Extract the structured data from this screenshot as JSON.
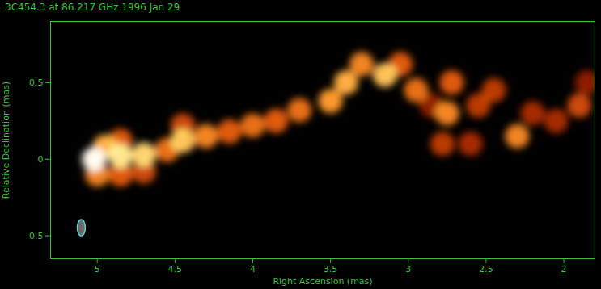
{
  "chart_data": {
    "type": "heatmap",
    "title": "3C454.3 at 86.217 GHz 1996 Jan 29",
    "x_label": "Right Ascension (mas)",
    "y_label": "Relative Declination (mas)",
    "xlim": [
      5.3,
      1.8
    ],
    "ylim": [
      -0.65,
      0.9
    ],
    "xticks": [
      5,
      4.5,
      4,
      3.5,
      3,
      2.5,
      2
    ],
    "yticks": [
      0.5,
      0,
      -0.5
    ],
    "grid": false,
    "components": {
      "x": [
        5.02,
        5.0,
        4.95,
        4.85,
        4.85,
        4.85,
        4.7,
        4.7,
        4.55,
        4.45,
        4.45,
        4.3,
        4.15,
        4.0,
        3.85,
        3.7,
        3.5,
        3.4,
        3.3,
        3.15,
        3.05,
        2.95,
        2.85,
        2.78,
        2.75,
        2.72,
        2.6,
        2.55,
        2.45,
        2.3,
        2.2,
        2.05,
        1.9,
        1.85
      ],
      "y": [
        0.0,
        -0.1,
        0.08,
        0.02,
        -0.1,
        0.12,
        0.03,
        -0.08,
        0.06,
        0.12,
        0.22,
        0.15,
        0.18,
        0.22,
        0.25,
        0.32,
        0.38,
        0.5,
        0.62,
        0.55,
        0.62,
        0.45,
        0.35,
        0.1,
        0.3,
        0.5,
        0.1,
        0.35,
        0.45,
        0.15,
        0.3,
        0.25,
        0.35,
        0.5
      ],
      "intensity": [
        1.0,
        0.6,
        0.7,
        0.85,
        0.5,
        0.5,
        0.8,
        0.45,
        0.55,
        0.75,
        0.45,
        0.6,
        0.5,
        0.55,
        0.5,
        0.55,
        0.65,
        0.7,
        0.6,
        0.75,
        0.5,
        0.55,
        0.3,
        0.4,
        0.6,
        0.5,
        0.35,
        0.4,
        0.4,
        0.6,
        0.35,
        0.35,
        0.45,
        0.3
      ]
    },
    "color_range": [
      0,
      1
    ],
    "beam": {
      "x": 5.1,
      "y": -0.45
    }
  }
}
